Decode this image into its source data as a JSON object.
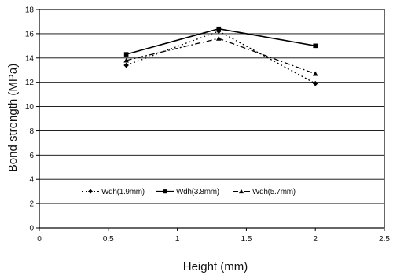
{
  "chart_data": {
    "type": "line",
    "title": "",
    "xlabel": "Height  (mm)",
    "ylabel": "Bond strength (MPa)",
    "xlim": [
      0,
      2.5
    ],
    "ylim": [
      0,
      18
    ],
    "x_ticks": [
      0,
      0.5,
      1,
      1.5,
      2,
      2.5
    ],
    "x_tick_labels": [
      "0",
      "0.5",
      "1",
      "1.5",
      "2",
      "2.5"
    ],
    "y_ticks": [
      0,
      2,
      4,
      6,
      8,
      10,
      12,
      14,
      16,
      18
    ],
    "y_tick_labels": [
      "0",
      "2",
      "4",
      "6",
      "8",
      "10",
      "12",
      "14",
      "16",
      "18"
    ],
    "grid": "horizontal",
    "legend_position": "center-left",
    "series": [
      {
        "name": "Wdh(1.9mm)",
        "marker": "diamond",
        "dash": "dot",
        "color": "#000000",
        "x": [
          0.63,
          1.3,
          2.0
        ],
        "y": [
          13.4,
          16.2,
          11.9
        ]
      },
      {
        "name": "Wdh(3.8mm)",
        "marker": "square",
        "dash": "solid",
        "color": "#000000",
        "x": [
          0.63,
          1.3,
          2.0
        ],
        "y": [
          14.3,
          16.4,
          15.0
        ]
      },
      {
        "name": "Wdh(5.7mm)",
        "marker": "triangle",
        "dash": "dashdot",
        "color": "#000000",
        "x": [
          0.63,
          1.3,
          2.0
        ],
        "y": [
          13.8,
          15.6,
          12.7
        ]
      }
    ]
  }
}
